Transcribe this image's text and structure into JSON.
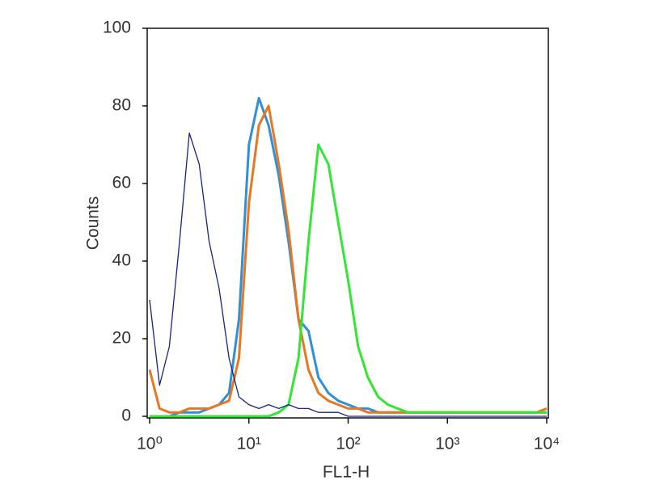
{
  "chart_data": {
    "type": "line",
    "xlabel": "FL1-H",
    "ylabel": "Counts",
    "xscale": "log",
    "x": [
      1,
      1.26,
      1.58,
      2,
      2.51,
      3.16,
      3.98,
      5.01,
      6.31,
      7.94,
      10,
      12.6,
      15.8,
      20,
      25.1,
      31.6,
      39.8,
      50.1,
      63.1,
      79.4,
      100,
      126,
      158,
      200,
      251,
      316,
      398,
      501,
      631,
      794,
      1000,
      1260,
      1580,
      2000,
      2510,
      3160,
      3980,
      5010,
      6310,
      7940,
      10000
    ],
    "series": [
      {
        "color": "#2f8fd8",
        "width": 3,
        "values": [
          0,
          0,
          0,
          1,
          1,
          1,
          2,
          3,
          6,
          25,
          70,
          82,
          75,
          62,
          45,
          25,
          22,
          10,
          6,
          4,
          3,
          2,
          2,
          1,
          1,
          1,
          1,
          1,
          1,
          1,
          1,
          1,
          1,
          1,
          1,
          1,
          1,
          1,
          1,
          1,
          1
        ]
      },
      {
        "color": "#e87722",
        "width": 3,
        "values": [
          12,
          2,
          1,
          1,
          2,
          2,
          2,
          3,
          4,
          15,
          55,
          75,
          80,
          65,
          48,
          25,
          12,
          6,
          4,
          3,
          2,
          2,
          1,
          1,
          1,
          1,
          1,
          1,
          1,
          1,
          1,
          1,
          1,
          1,
          1,
          1,
          1,
          1,
          1,
          1,
          2
        ]
      },
      {
        "color": "#33e633",
        "width": 3,
        "values": [
          0,
          0,
          0,
          0,
          0,
          0,
          0,
          0,
          0,
          0,
          0,
          0,
          0,
          1,
          3,
          15,
          45,
          70,
          65,
          50,
          35,
          18,
          10,
          5,
          3,
          2,
          1,
          1,
          1,
          1,
          1,
          1,
          1,
          1,
          1,
          1,
          1,
          1,
          1,
          1,
          1
        ]
      },
      {
        "color": "#1a237e",
        "width": 1.3,
        "values": [
          30,
          8,
          18,
          45,
          73,
          65,
          45,
          33,
          15,
          5,
          3,
          2,
          3,
          2,
          3,
          2,
          2,
          1,
          1,
          1,
          0,
          0,
          0,
          0,
          0,
          0,
          0,
          0,
          0,
          0,
          0,
          0,
          0,
          0,
          0,
          0,
          0,
          0,
          0,
          0,
          0
        ]
      }
    ],
    "xlim": [
      1,
      10000
    ],
    "xticks": [
      {
        "value": 1,
        "label": "10⁰"
      },
      {
        "value": 10,
        "label": "10¹"
      },
      {
        "value": 100,
        "label": "10²"
      },
      {
        "value": 1000,
        "label": "10³"
      },
      {
        "value": 10000,
        "label": "10⁴"
      }
    ],
    "ylim": [
      0,
      100
    ],
    "yticks": [
      0,
      20,
      40,
      60,
      80,
      100
    ]
  }
}
